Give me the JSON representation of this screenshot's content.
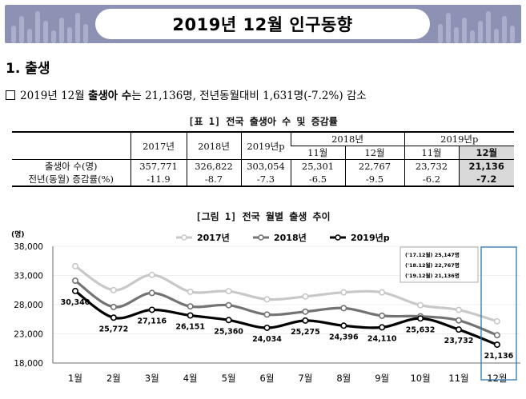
{
  "header": {
    "title": "2019년 12월 인구동향"
  },
  "section": {
    "heading": "1. 출생"
  },
  "summary": {
    "prefix": "2019년 12월",
    "bold": "출생아 수",
    "rest": "는 21,136명, 전년동월대비 1,631명(-7.2%) 감소"
  },
  "table": {
    "caption": "[표 1] 전국 출생아 수 및 증감률",
    "header_top": [
      "2017년",
      "2018년",
      "2019년p",
      "2018년",
      "2019년p"
    ],
    "header_sub": [
      "11월",
      "12월",
      "11월",
      "12월"
    ],
    "rows": [
      {
        "label": "출생아 수(명)",
        "values": [
          "357,771",
          "326,822",
          "303,054",
          "25,301",
          "22,767",
          "23,732",
          "21,136"
        ]
      },
      {
        "label": "전년(동월) 증감률(%)",
        "values": [
          "-11.9",
          "-8.7",
          "-7.3",
          "-6.5",
          "-9.5",
          "-6.2",
          "-7.2"
        ]
      }
    ]
  },
  "chart": {
    "caption": "[그림 1] 전국 월별 출생 추이",
    "unit": "(명)",
    "inset": [
      "('17.12월) 25,147명",
      "('18.12월) 22,767명",
      "('19.12월) 21,136명"
    ]
  },
  "chart_data": {
    "type": "line",
    "categories": [
      "1월",
      "2월",
      "3월",
      "4월",
      "5월",
      "6월",
      "7월",
      "8월",
      "9월",
      "10월",
      "11월",
      "12월"
    ],
    "ylim": [
      18000,
      38000
    ],
    "yticks": [
      "18,000",
      "23,000",
      "28,000",
      "33,000",
      "38,000"
    ],
    "yticks_values": [
      18000,
      23000,
      28000,
      33000,
      38000
    ],
    "legend_position": "top",
    "series": [
      {
        "name": "2017년",
        "color": "#c8c8c8",
        "values": [
          34600,
          30500,
          33100,
          30200,
          30300,
          28900,
          29400,
          30100,
          30100,
          27900,
          27100,
          25147
        ]
      },
      {
        "name": "2018년",
        "color": "#737373",
        "values": [
          32100,
          27600,
          30000,
          27700,
          27900,
          26300,
          26800,
          27400,
          26100,
          26000,
          25300,
          22767
        ]
      },
      {
        "name": "2019년p",
        "color": "#000000",
        "values": [
          30340,
          25772,
          27116,
          26151,
          25360,
          24034,
          25275,
          24396,
          24110,
          25632,
          23732,
          21136
        ],
        "labels": [
          "30,340",
          "25,772",
          "27,116",
          "26,151",
          "25,360",
          "24,034",
          "25,275",
          "24,396",
          "24,110",
          "25,632",
          "23,732",
          "21,136"
        ]
      }
    ]
  }
}
